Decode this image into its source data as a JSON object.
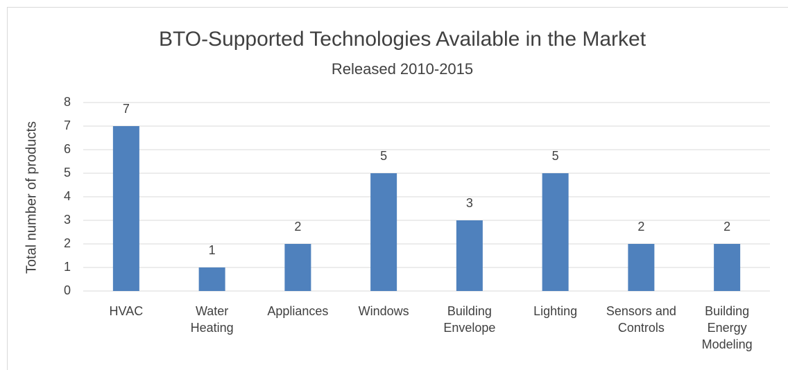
{
  "chart_data": {
    "type": "bar",
    "title": "BTO-Supported Technologies Available in the Market",
    "subtitle": "Released 2010-2015",
    "y_label": "Total  number of products",
    "categories": [
      "HVAC",
      "Water Heating",
      "Appliances",
      "Windows",
      "Building Envelope",
      "Lighting",
      "Sensors and Controls",
      "Building Energy Modeling"
    ],
    "values": [
      7,
      1,
      2,
      5,
      3,
      5,
      2,
      2
    ],
    "color": "#4f81bd",
    "ylim": [
      0,
      8
    ],
    "yticks": [
      0,
      1,
      2,
      3,
      4,
      5,
      6,
      7,
      8
    ],
    "grid": true
  }
}
